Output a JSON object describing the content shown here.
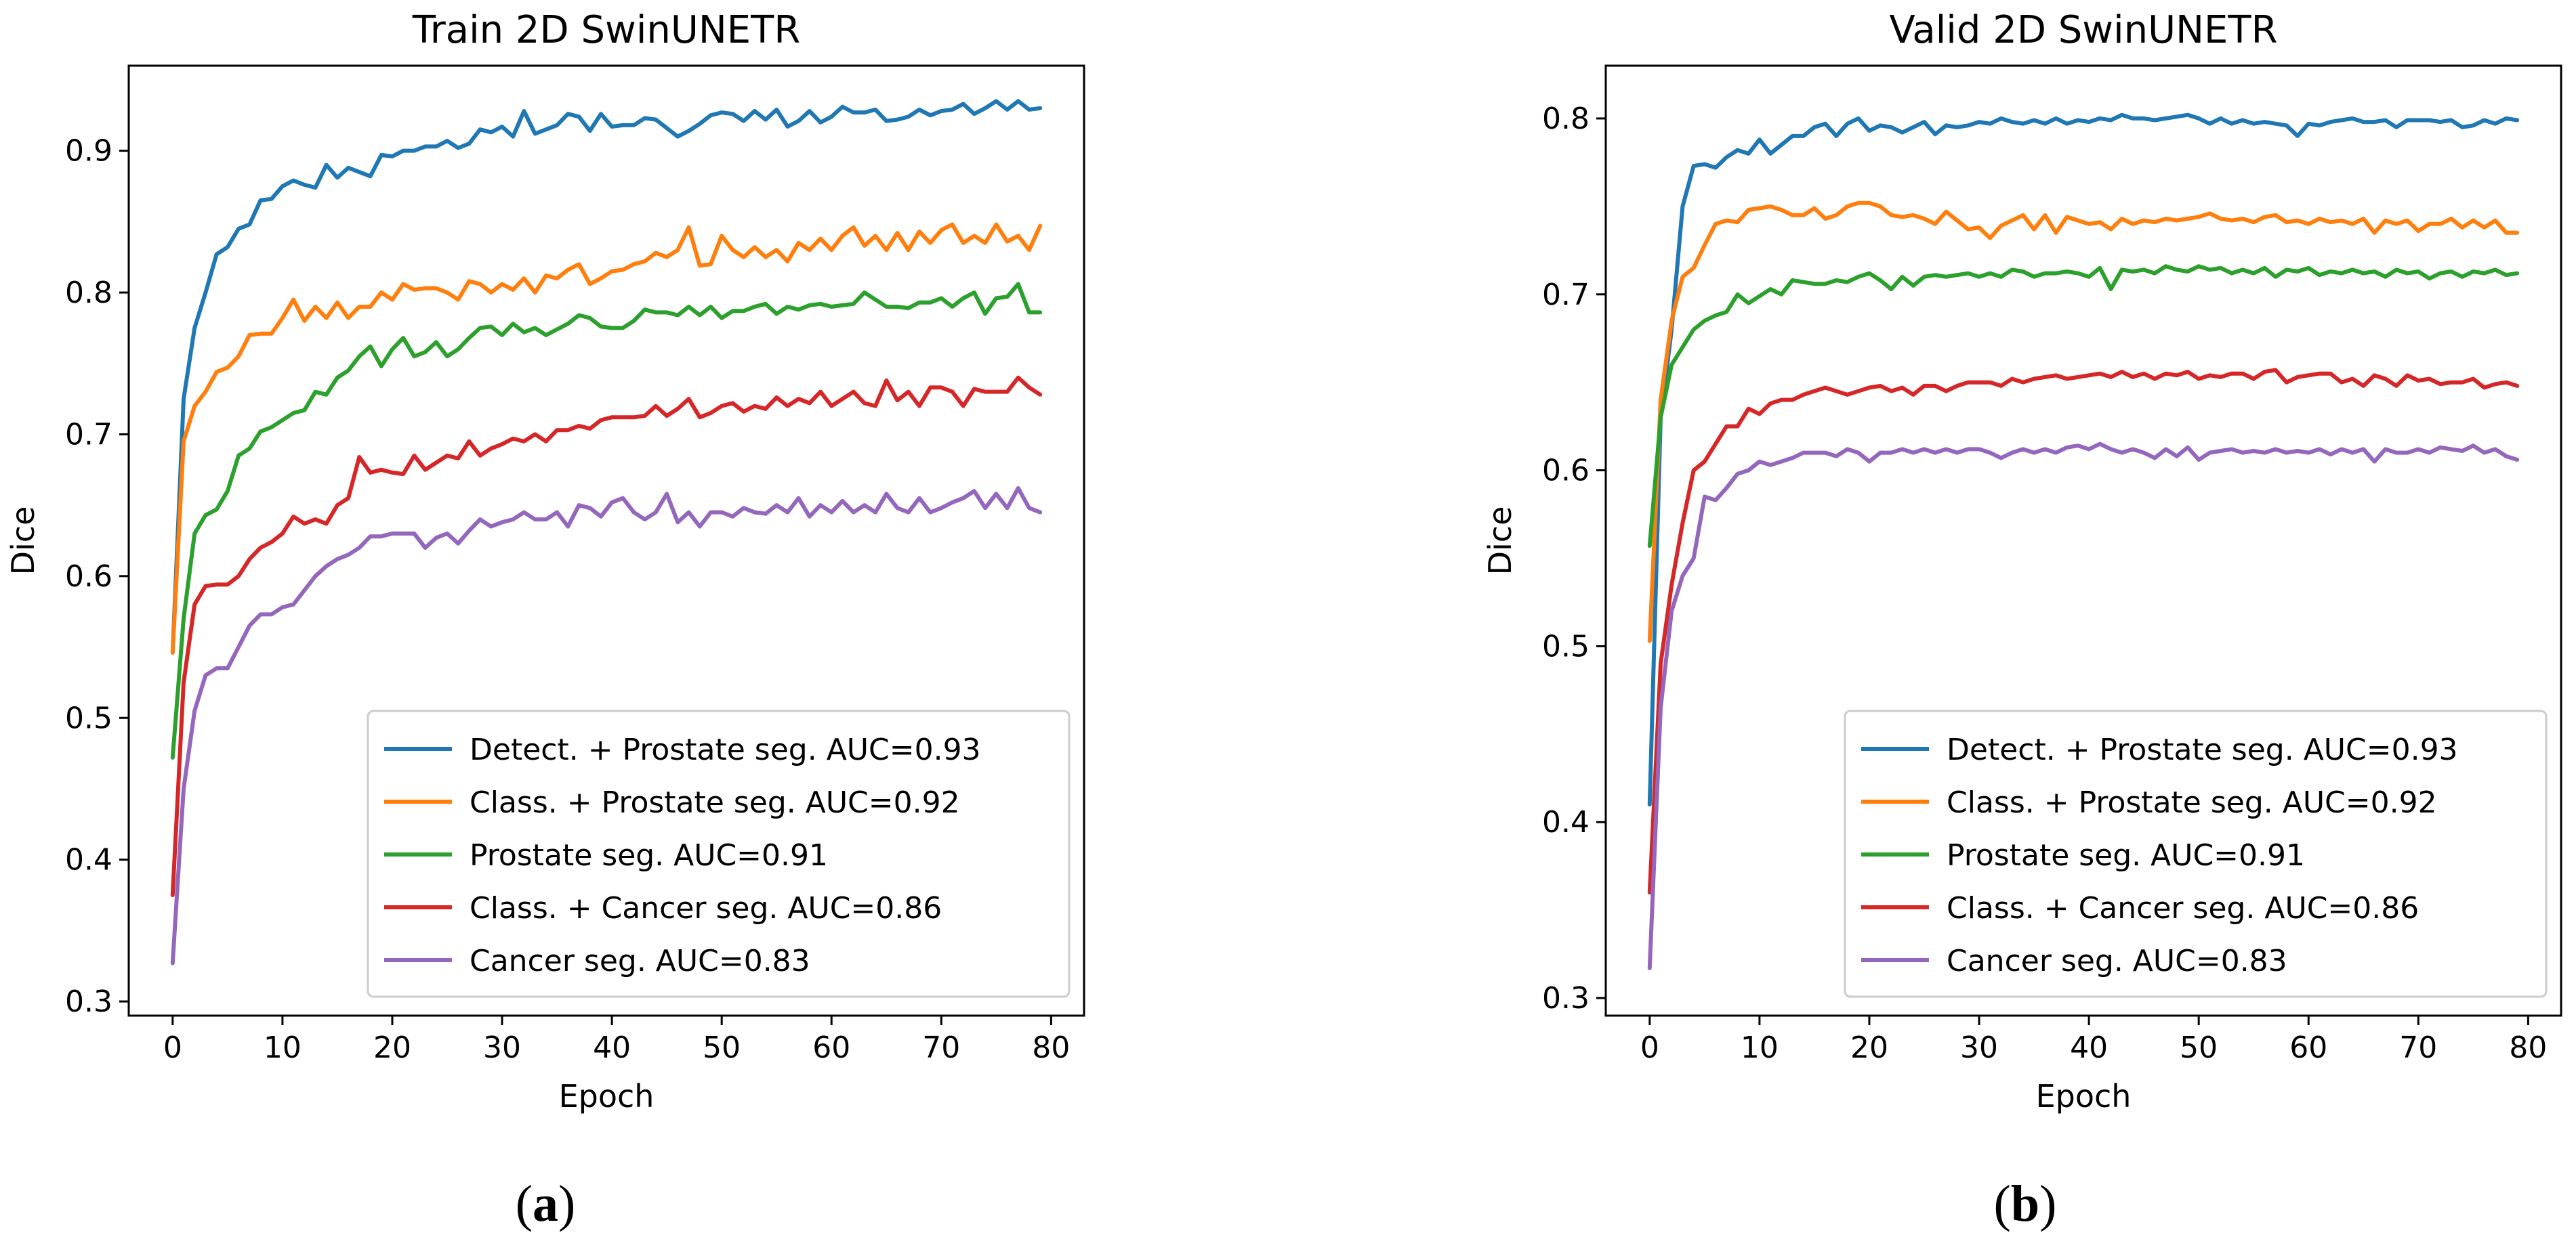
{
  "chart_data": [
    {
      "type": "line",
      "title": "Train 2D SwinUNETR",
      "xlabel": "Epoch",
      "ylabel": "Dice",
      "xlim": [
        -4,
        83
      ],
      "ylim": [
        0.29,
        0.96
      ],
      "xticks": [
        0,
        10,
        20,
        30,
        40,
        50,
        60,
        70,
        80
      ],
      "yticks": [
        0.3,
        0.4,
        0.5,
        0.6,
        0.7,
        0.8,
        0.9
      ],
      "legend_position": "lower right",
      "grid": false,
      "panel_label": "a",
      "series": [
        {
          "name": "Detect. + Prostate seg. AUC=0.93",
          "color": "#1f77b4",
          "values": [
            0.546,
            0.725,
            0.775,
            0.8,
            0.827,
            0.832,
            0.845,
            0.848,
            0.865,
            0.866,
            0.875,
            0.879,
            0.876,
            0.874,
            0.89,
            0.881,
            0.888,
            0.885,
            0.882,
            0.897,
            0.896,
            0.9,
            0.9,
            0.903,
            0.903,
            0.907,
            0.902,
            0.905,
            0.915,
            0.913,
            0.917,
            0.91,
            0.928,
            0.912,
            0.915,
            0.918,
            0.926,
            0.924,
            0.914,
            0.926,
            0.917,
            0.918,
            0.918,
            0.923,
            0.922,
            0.916,
            0.91,
            0.914,
            0.919,
            0.925,
            0.927,
            0.926,
            0.921,
            0.928,
            0.922,
            0.929,
            0.917,
            0.921,
            0.928,
            0.92,
            0.924,
            0.931,
            0.927,
            0.927,
            0.929,
            0.921,
            0.922,
            0.924,
            0.929,
            0.925,
            0.928,
            0.929,
            0.933,
            0.926,
            0.93,
            0.935,
            0.929,
            0.935,
            0.929,
            0.93
          ]
        },
        {
          "name": "Class. + Prostate seg. AUC=0.92",
          "color": "#ff7f0e",
          "values": [
            0.546,
            0.695,
            0.72,
            0.73,
            0.744,
            0.747,
            0.755,
            0.77,
            0.771,
            0.771,
            0.782,
            0.795,
            0.78,
            0.79,
            0.782,
            0.793,
            0.782,
            0.79,
            0.79,
            0.8,
            0.795,
            0.806,
            0.802,
            0.803,
            0.803,
            0.8,
            0.795,
            0.808,
            0.806,
            0.8,
            0.806,
            0.802,
            0.81,
            0.8,
            0.812,
            0.81,
            0.816,
            0.82,
            0.806,
            0.81,
            0.815,
            0.816,
            0.82,
            0.822,
            0.828,
            0.825,
            0.83,
            0.846,
            0.819,
            0.82,
            0.84,
            0.83,
            0.825,
            0.832,
            0.825,
            0.83,
            0.822,
            0.835,
            0.83,
            0.838,
            0.83,
            0.84,
            0.846,
            0.833,
            0.84,
            0.83,
            0.842,
            0.83,
            0.843,
            0.835,
            0.844,
            0.848,
            0.835,
            0.84,
            0.835,
            0.848,
            0.836,
            0.84,
            0.83,
            0.847
          ]
        },
        {
          "name": "Prostate seg. AUC=0.91",
          "color": "#2ca02c",
          "values": [
            0.472,
            0.57,
            0.63,
            0.643,
            0.647,
            0.66,
            0.685,
            0.69,
            0.702,
            0.705,
            0.71,
            0.715,
            0.717,
            0.73,
            0.728,
            0.74,
            0.745,
            0.755,
            0.762,
            0.748,
            0.76,
            0.768,
            0.755,
            0.758,
            0.765,
            0.755,
            0.76,
            0.768,
            0.775,
            0.776,
            0.77,
            0.778,
            0.772,
            0.775,
            0.77,
            0.774,
            0.778,
            0.784,
            0.782,
            0.776,
            0.775,
            0.775,
            0.78,
            0.788,
            0.786,
            0.786,
            0.784,
            0.79,
            0.784,
            0.79,
            0.782,
            0.787,
            0.787,
            0.79,
            0.792,
            0.785,
            0.79,
            0.788,
            0.791,
            0.792,
            0.79,
            0.791,
            0.792,
            0.8,
            0.795,
            0.79,
            0.79,
            0.789,
            0.793,
            0.793,
            0.796,
            0.79,
            0.796,
            0.8,
            0.785,
            0.796,
            0.797,
            0.806,
            0.786,
            0.786
          ]
        },
        {
          "name": "Class. + Cancer seg. AUC=0.86",
          "color": "#d62728",
          "values": [
            0.375,
            0.525,
            0.58,
            0.593,
            0.594,
            0.594,
            0.6,
            0.612,
            0.62,
            0.624,
            0.63,
            0.642,
            0.637,
            0.64,
            0.637,
            0.65,
            0.655,
            0.684,
            0.673,
            0.675,
            0.673,
            0.672,
            0.685,
            0.675,
            0.68,
            0.685,
            0.683,
            0.695,
            0.685,
            0.69,
            0.693,
            0.697,
            0.695,
            0.7,
            0.695,
            0.703,
            0.703,
            0.706,
            0.704,
            0.71,
            0.712,
            0.712,
            0.712,
            0.713,
            0.72,
            0.713,
            0.718,
            0.725,
            0.712,
            0.715,
            0.72,
            0.722,
            0.716,
            0.72,
            0.718,
            0.726,
            0.72,
            0.725,
            0.722,
            0.73,
            0.72,
            0.725,
            0.73,
            0.722,
            0.72,
            0.738,
            0.724,
            0.73,
            0.72,
            0.733,
            0.733,
            0.73,
            0.72,
            0.732,
            0.73,
            0.73,
            0.73,
            0.74,
            0.733,
            0.728
          ]
        },
        {
          "name": "Cancer seg. AUC=0.83",
          "color": "#9467bd",
          "values": [
            0.327,
            0.45,
            0.505,
            0.53,
            0.535,
            0.535,
            0.55,
            0.565,
            0.573,
            0.573,
            0.578,
            0.58,
            0.59,
            0.6,
            0.607,
            0.612,
            0.615,
            0.62,
            0.628,
            0.628,
            0.63,
            0.63,
            0.63,
            0.62,
            0.627,
            0.63,
            0.623,
            0.632,
            0.64,
            0.635,
            0.638,
            0.64,
            0.645,
            0.64,
            0.64,
            0.645,
            0.635,
            0.65,
            0.648,
            0.642,
            0.652,
            0.655,
            0.645,
            0.64,
            0.645,
            0.658,
            0.638,
            0.645,
            0.635,
            0.645,
            0.645,
            0.642,
            0.648,
            0.645,
            0.644,
            0.65,
            0.645,
            0.655,
            0.642,
            0.65,
            0.645,
            0.653,
            0.645,
            0.65,
            0.645,
            0.658,
            0.648,
            0.645,
            0.655,
            0.645,
            0.648,
            0.652,
            0.655,
            0.66,
            0.648,
            0.658,
            0.648,
            0.662,
            0.648,
            0.645
          ]
        }
      ]
    },
    {
      "type": "line",
      "title": "Valid 2D SwinUNETR",
      "xlabel": "Epoch",
      "ylabel": "Dice",
      "xlim": [
        -4,
        83
      ],
      "ylim": [
        0.29,
        0.83
      ],
      "xticks": [
        0,
        10,
        20,
        30,
        40,
        50,
        60,
        70,
        80
      ],
      "yticks": [
        0.3,
        0.4,
        0.5,
        0.6,
        0.7,
        0.8
      ],
      "legend_position": "lower right",
      "grid": false,
      "panel_label": "b",
      "series": [
        {
          "name": "Detect. + Prostate seg. AUC=0.93",
          "color": "#1f77b4",
          "values": [
            0.41,
            0.63,
            0.68,
            0.75,
            0.773,
            0.774,
            0.772,
            0.778,
            0.782,
            0.78,
            0.788,
            0.78,
            0.785,
            0.79,
            0.79,
            0.795,
            0.797,
            0.79,
            0.797,
            0.8,
            0.793,
            0.796,
            0.795,
            0.792,
            0.795,
            0.798,
            0.791,
            0.796,
            0.795,
            0.796,
            0.798,
            0.797,
            0.8,
            0.798,
            0.797,
            0.799,
            0.797,
            0.8,
            0.797,
            0.799,
            0.798,
            0.8,
            0.799,
            0.802,
            0.8,
            0.8,
            0.799,
            0.8,
            0.801,
            0.802,
            0.8,
            0.797,
            0.8,
            0.797,
            0.799,
            0.797,
            0.798,
            0.797,
            0.796,
            0.79,
            0.797,
            0.796,
            0.798,
            0.799,
            0.8,
            0.798,
            0.798,
            0.799,
            0.795,
            0.799,
            0.799,
            0.799,
            0.798,
            0.799,
            0.795,
            0.796,
            0.799,
            0.797,
            0.8,
            0.799
          ]
        },
        {
          "name": "Class. + Prostate seg. AUC=0.92",
          "color": "#ff7f0e",
          "values": [
            0.503,
            0.64,
            0.685,
            0.71,
            0.715,
            0.728,
            0.74,
            0.742,
            0.741,
            0.748,
            0.749,
            0.75,
            0.748,
            0.745,
            0.745,
            0.749,
            0.743,
            0.745,
            0.75,
            0.752,
            0.752,
            0.75,
            0.745,
            0.744,
            0.745,
            0.743,
            0.74,
            0.747,
            0.742,
            0.737,
            0.738,
            0.732,
            0.739,
            0.742,
            0.745,
            0.737,
            0.745,
            0.735,
            0.744,
            0.742,
            0.74,
            0.741,
            0.737,
            0.743,
            0.74,
            0.742,
            0.741,
            0.743,
            0.742,
            0.743,
            0.744,
            0.746,
            0.743,
            0.742,
            0.743,
            0.741,
            0.744,
            0.745,
            0.741,
            0.742,
            0.74,
            0.743,
            0.741,
            0.742,
            0.74,
            0.743,
            0.735,
            0.742,
            0.74,
            0.742,
            0.736,
            0.74,
            0.74,
            0.743,
            0.738,
            0.742,
            0.738,
            0.742,
            0.735,
            0.735
          ]
        },
        {
          "name": "Prostate seg. AUC=0.91",
          "color": "#2ca02c",
          "values": [
            0.557,
            0.63,
            0.66,
            0.67,
            0.68,
            0.685,
            0.688,
            0.69,
            0.7,
            0.695,
            0.699,
            0.703,
            0.7,
            0.708,
            0.707,
            0.706,
            0.706,
            0.708,
            0.707,
            0.71,
            0.712,
            0.708,
            0.703,
            0.71,
            0.705,
            0.71,
            0.711,
            0.71,
            0.711,
            0.712,
            0.71,
            0.712,
            0.71,
            0.714,
            0.713,
            0.71,
            0.712,
            0.712,
            0.713,
            0.712,
            0.71,
            0.715,
            0.703,
            0.714,
            0.713,
            0.714,
            0.712,
            0.716,
            0.714,
            0.713,
            0.716,
            0.714,
            0.715,
            0.712,
            0.714,
            0.712,
            0.715,
            0.71,
            0.714,
            0.713,
            0.715,
            0.711,
            0.713,
            0.712,
            0.714,
            0.712,
            0.713,
            0.71,
            0.714,
            0.712,
            0.713,
            0.709,
            0.712,
            0.713,
            0.71,
            0.713,
            0.712,
            0.714,
            0.711,
            0.712
          ]
        },
        {
          "name": "Class. + Cancer seg. AUC=0.86",
          "color": "#d62728",
          "values": [
            0.36,
            0.49,
            0.535,
            0.57,
            0.6,
            0.605,
            0.615,
            0.625,
            0.625,
            0.635,
            0.632,
            0.638,
            0.64,
            0.64,
            0.643,
            0.645,
            0.647,
            0.645,
            0.643,
            0.645,
            0.647,
            0.648,
            0.645,
            0.647,
            0.643,
            0.648,
            0.648,
            0.645,
            0.648,
            0.65,
            0.65,
            0.65,
            0.648,
            0.652,
            0.65,
            0.652,
            0.653,
            0.654,
            0.652,
            0.653,
            0.654,
            0.655,
            0.653,
            0.656,
            0.653,
            0.655,
            0.652,
            0.655,
            0.654,
            0.656,
            0.652,
            0.654,
            0.653,
            0.655,
            0.655,
            0.652,
            0.656,
            0.657,
            0.65,
            0.653,
            0.654,
            0.655,
            0.655,
            0.65,
            0.652,
            0.648,
            0.654,
            0.652,
            0.648,
            0.654,
            0.651,
            0.652,
            0.649,
            0.65,
            0.65,
            0.652,
            0.647,
            0.649,
            0.65,
            0.648
          ]
        },
        {
          "name": "Cancer seg. AUC=0.83",
          "color": "#9467bd",
          "values": [
            0.317,
            0.465,
            0.52,
            0.54,
            0.55,
            0.585,
            0.583,
            0.59,
            0.598,
            0.6,
            0.605,
            0.603,
            0.605,
            0.607,
            0.61,
            0.61,
            0.61,
            0.608,
            0.612,
            0.61,
            0.605,
            0.61,
            0.61,
            0.612,
            0.61,
            0.612,
            0.61,
            0.612,
            0.61,
            0.612,
            0.612,
            0.61,
            0.607,
            0.61,
            0.612,
            0.61,
            0.612,
            0.61,
            0.613,
            0.614,
            0.612,
            0.615,
            0.612,
            0.61,
            0.612,
            0.61,
            0.607,
            0.612,
            0.608,
            0.613,
            0.606,
            0.61,
            0.611,
            0.612,
            0.61,
            0.611,
            0.61,
            0.612,
            0.61,
            0.611,
            0.61,
            0.612,
            0.609,
            0.612,
            0.61,
            0.612,
            0.605,
            0.612,
            0.61,
            0.61,
            0.612,
            0.61,
            0.613,
            0.612,
            0.611,
            0.614,
            0.61,
            0.612,
            0.608,
            0.606
          ]
        }
      ]
    }
  ]
}
